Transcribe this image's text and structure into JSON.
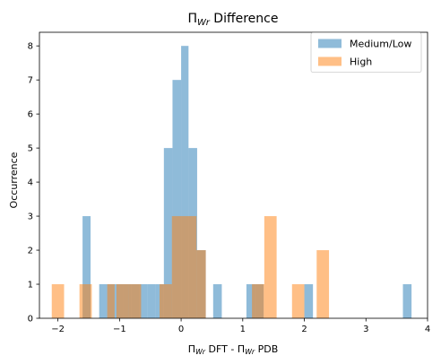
{
  "chart_data": {
    "type": "bar",
    "title_main": "Π",
    "title_sub": "Wr",
    "title_rest": " Difference",
    "xlabel_a": "Π",
    "xlabel_a_sub": "Wr",
    "xlabel_mid": " DFT - Π",
    "xlabel_b_sub": "Wr",
    "xlabel_end": " PDB",
    "ylabel": "Occurrence",
    "xlim": [
      -2.3,
      4.0
    ],
    "ylim": [
      0,
      8.4
    ],
    "xticks": [
      -2,
      -1,
      0,
      1,
      2,
      3,
      4
    ],
    "yticks": [
      0,
      1,
      2,
      3,
      4,
      5,
      6,
      7,
      8
    ],
    "legend_position": "top-right",
    "grid": false,
    "series": [
      {
        "name": "Medium/Low",
        "color": "#1f77b4",
        "alpha": 0.5,
        "bins": [
          {
            "x0": -1.6,
            "x1": -1.47,
            "count": 3
          },
          {
            "x0": -1.33,
            "x1": -1.2,
            "count": 1
          },
          {
            "x0": -1.2,
            "x1": -1.07,
            "count": 1
          },
          {
            "x0": -1.07,
            "x1": -0.94,
            "count": 1
          },
          {
            "x0": -0.94,
            "x1": -0.81,
            "count": 1
          },
          {
            "x0": -0.81,
            "x1": -0.68,
            "count": 1
          },
          {
            "x0": -0.68,
            "x1": -0.55,
            "count": 1
          },
          {
            "x0": -0.55,
            "x1": -0.42,
            "count": 1
          },
          {
            "x0": -0.42,
            "x1": -0.28,
            "count": 1
          },
          {
            "x0": -0.28,
            "x1": -0.14,
            "count": 5
          },
          {
            "x0": -0.14,
            "x1": 0.0,
            "count": 7
          },
          {
            "x0": 0.0,
            "x1": 0.12,
            "count": 8
          },
          {
            "x0": 0.12,
            "x1": 0.26,
            "count": 5
          },
          {
            "x0": 0.26,
            "x1": 0.4,
            "count": 2
          },
          {
            "x0": 0.52,
            "x1": 0.66,
            "count": 1
          },
          {
            "x0": 1.06,
            "x1": 1.2,
            "count": 1
          },
          {
            "x0": 1.2,
            "x1": 1.34,
            "count": 1
          },
          {
            "x0": 2.0,
            "x1": 2.14,
            "count": 1
          },
          {
            "x0": 3.6,
            "x1": 3.74,
            "count": 1
          }
        ]
      },
      {
        "name": "High",
        "color": "#ff7f0e",
        "alpha": 0.5,
        "bins": [
          {
            "x0": -2.1,
            "x1": -1.9,
            "count": 1
          },
          {
            "x0": -1.65,
            "x1": -1.45,
            "count": 1
          },
          {
            "x0": -1.2,
            "x1": -1.08,
            "count": 1
          },
          {
            "x0": -1.05,
            "x1": -0.85,
            "count": 1
          },
          {
            "x0": -0.85,
            "x1": -0.65,
            "count": 1
          },
          {
            "x0": -0.35,
            "x1": -0.15,
            "count": 1
          },
          {
            "x0": -0.15,
            "x1": 0.05,
            "count": 3
          },
          {
            "x0": 0.05,
            "x1": 0.25,
            "count": 3
          },
          {
            "x0": 0.25,
            "x1": 0.4,
            "count": 2
          },
          {
            "x0": 1.15,
            "x1": 1.35,
            "count": 1
          },
          {
            "x0": 1.35,
            "x1": 1.55,
            "count": 3
          },
          {
            "x0": 1.8,
            "x1": 2.0,
            "count": 1
          },
          {
            "x0": 2.2,
            "x1": 2.4,
            "count": 2
          }
        ]
      }
    ]
  }
}
